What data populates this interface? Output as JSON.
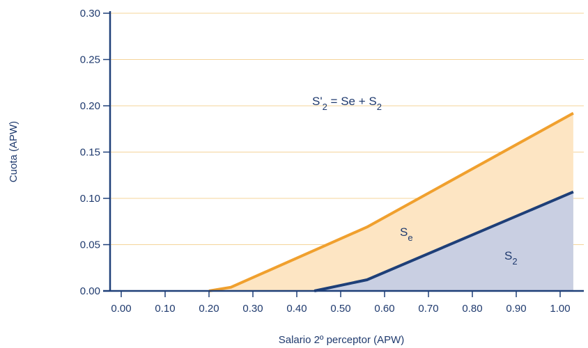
{
  "chart_data": {
    "type": "area",
    "title": "",
    "xlabel": "Salario 2º perceptor (APW)",
    "ylabel": "Cuota (APW)",
    "xlim": [
      0,
      1.03
    ],
    "ylim": [
      0,
      0.3
    ],
    "x_ticks": [
      "0.00",
      "0.10",
      "0.20",
      "0.30",
      "0.40",
      "0.50",
      "0.60",
      "0.70",
      "0.80",
      "0.90",
      "1.00"
    ],
    "y_ticks": [
      "0.00",
      "0.05",
      "0.10",
      "0.15",
      "0.20",
      "0.25",
      "0.30"
    ],
    "grid": "horizontal",
    "colors": {
      "upper_line": "#f0a02e",
      "upper_fill": "#fde5c3",
      "lower_line": "#1e3f78",
      "lower_fill": "#c9cfe2",
      "grid": "#f5d49a",
      "axis": "#1e3f78",
      "text": "#1f3a6e"
    },
    "series": [
      {
        "x": [
          0.2,
          0.25,
          0.56,
          1.03
        ],
        "y": [
          0.0,
          0.004,
          0.069,
          0.192
        ]
      },
      {
        "x": [
          0.44,
          0.56,
          1.03
        ],
        "y": [
          0.0,
          0.012,
          0.107
        ]
      }
    ],
    "annotations": {
      "total": {
        "main": "S'",
        "sub": "2",
        "rest": " = Se + S",
        "sub2": "2"
      },
      "se": {
        "main": "S",
        "sub": "e"
      },
      "s2": {
        "main": "S",
        "sub": "2"
      }
    }
  }
}
